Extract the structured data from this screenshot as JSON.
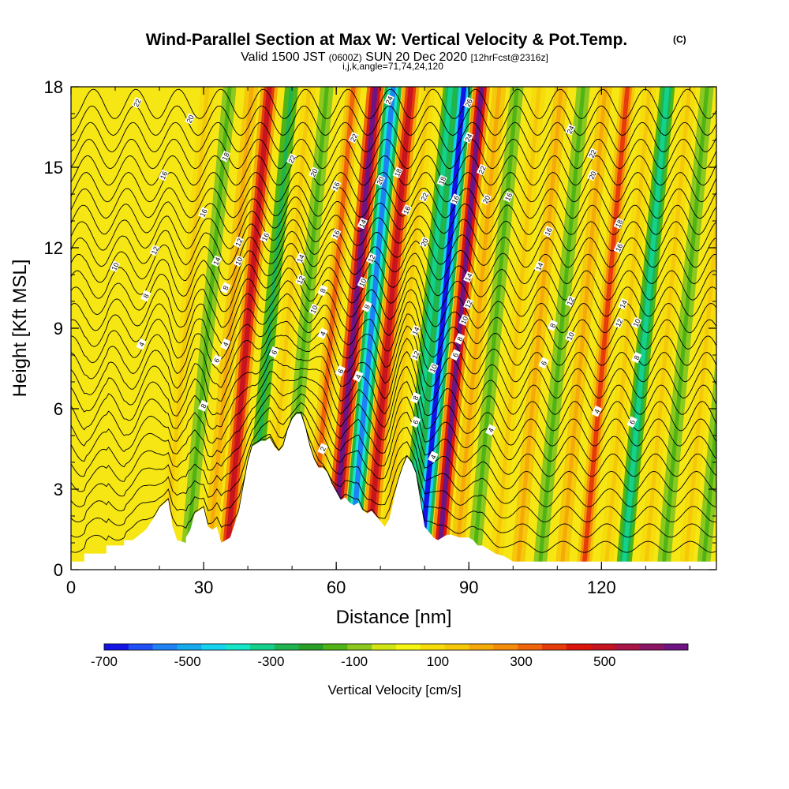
{
  "chart_data": {
    "type": "heatmap",
    "title": "Wind-Parallel Section at Max W: Vertical Velocity & Pot.Temp.",
    "title_mark": "(C)",
    "subtitle": {
      "prefix": "Valid 1500 JST",
      "utc": "(0600Z)",
      "date": "SUN 20 Dec 2020",
      "forecast": "[12hrFcst@2316z]"
    },
    "params_line": "i,j,k,angle=71,74,24,120",
    "xlabel": "Distance [nm]",
    "ylabel": "Height [Kft MSL]",
    "xlim": [
      0,
      146
    ],
    "ylim": [
      0,
      18
    ],
    "x_ticks": [
      "0",
      "30",
      "60",
      "90",
      "120"
    ],
    "y_ticks": [
      "0",
      "3",
      "6",
      "9",
      "12",
      "15",
      "18"
    ],
    "colorbar": {
      "label": "Vertical Velocity [cm/s]",
      "range": [
        -700,
        700
      ],
      "tick_labels": [
        "-700",
        "-500",
        "-300",
        "-100",
        "100",
        "300",
        "500"
      ],
      "colors": [
        "#1414e6",
        "#1e50f5",
        "#1e82f5",
        "#14aaf0",
        "#14d2f0",
        "#14e6c8",
        "#14d28c",
        "#1eb450",
        "#28a028",
        "#50b414",
        "#8cc81e",
        "#d2e614",
        "#f5f514",
        "#f5dc0a",
        "#f5c80a",
        "#f5aa0a",
        "#f58c0a",
        "#f0640a",
        "#e63c0a",
        "#dc140a",
        "#c8141e",
        "#aa1446",
        "#8c1464",
        "#6e1482"
      ]
    },
    "band_centers_nm": [
      21,
      26,
      31,
      35,
      40,
      44,
      48,
      54,
      59,
      63,
      67,
      71,
      76,
      79,
      83,
      87,
      91,
      96,
      101,
      106,
      111,
      116,
      121,
      125,
      130,
      134,
      139,
      143
    ],
    "band_values_cms": [
      150,
      -150,
      200,
      500,
      -250,
      150,
      -150,
      300,
      700,
      -550,
      500,
      150,
      -350,
      -650,
      650,
      200,
      -150,
      150,
      200,
      -150,
      200,
      350,
      150,
      -350,
      150,
      -150,
      150,
      -150
    ],
    "contour_labels": [
      {
        "text": "22",
        "x": 15,
        "y": 17.4
      },
      {
        "text": "20",
        "x": 27,
        "y": 16.8
      },
      {
        "text": "18",
        "x": 35,
        "y": 15.4
      },
      {
        "text": "16",
        "x": 21,
        "y": 14.7
      },
      {
        "text": "16",
        "x": 30,
        "y": 13.3
      },
      {
        "text": "12",
        "x": 19,
        "y": 11.9
      },
      {
        "text": "12",
        "x": 38,
        "y": 12.2
      },
      {
        "text": "16",
        "x": 44,
        "y": 12.4
      },
      {
        "text": "10",
        "x": 10,
        "y": 11.3
      },
      {
        "text": "14",
        "x": 33,
        "y": 11.5
      },
      {
        "text": "10",
        "x": 38,
        "y": 11.5
      },
      {
        "text": "8",
        "x": 17,
        "y": 10.2
      },
      {
        "text": "8",
        "x": 35,
        "y": 10.5
      },
      {
        "text": "4",
        "x": 16,
        "y": 8.4
      },
      {
        "text": "4",
        "x": 35,
        "y": 8.4
      },
      {
        "text": "6",
        "x": 33,
        "y": 7.8
      },
      {
        "text": "6",
        "x": 46,
        "y": 8.1
      },
      {
        "text": "8",
        "x": 30,
        "y": 6.1
      },
      {
        "text": "22",
        "x": 50,
        "y": 15.3
      },
      {
        "text": "20",
        "x": 55,
        "y": 14.8
      },
      {
        "text": "14",
        "x": 52,
        "y": 11.6
      },
      {
        "text": "12",
        "x": 52,
        "y": 10.8
      },
      {
        "text": "10",
        "x": 55,
        "y": 9.7
      },
      {
        "text": "8",
        "x": 57,
        "y": 10.4
      },
      {
        "text": "4",
        "x": 57,
        "y": 8.8
      },
      {
        "text": "2",
        "x": 57,
        "y": 4.5
      },
      {
        "text": "24",
        "x": 72,
        "y": 17.5
      },
      {
        "text": "22",
        "x": 64,
        "y": 16.1
      },
      {
        "text": "20",
        "x": 70,
        "y": 14.5
      },
      {
        "text": "18",
        "x": 74,
        "y": 14.8
      },
      {
        "text": "16",
        "x": 60,
        "y": 14.3
      },
      {
        "text": "16",
        "x": 60,
        "y": 12.5
      },
      {
        "text": "14",
        "x": 66,
        "y": 12.9
      },
      {
        "text": "12",
        "x": 68,
        "y": 11.6
      },
      {
        "text": "10",
        "x": 66,
        "y": 10.7
      },
      {
        "text": "8",
        "x": 67,
        "y": 9.8
      },
      {
        "text": "6",
        "x": 61,
        "y": 7.4
      },
      {
        "text": "4",
        "x": 65,
        "y": 7.2
      },
      {
        "text": "16",
        "x": 76,
        "y": 13.4
      },
      {
        "text": "22",
        "x": 80,
        "y": 13.9
      },
      {
        "text": "20",
        "x": 80,
        "y": 12.2
      },
      {
        "text": "18",
        "x": 84,
        "y": 14.5
      },
      {
        "text": "16",
        "x": 87,
        "y": 13.8
      },
      {
        "text": "14",
        "x": 78,
        "y": 8.9
      },
      {
        "text": "12",
        "x": 78,
        "y": 8.0
      },
      {
        "text": "10",
        "x": 82,
        "y": 7.5
      },
      {
        "text": "8",
        "x": 78,
        "y": 6.4
      },
      {
        "text": "6",
        "x": 78,
        "y": 5.5
      },
      {
        "text": "4",
        "x": 82,
        "y": 4.2
      },
      {
        "text": "26",
        "x": 90,
        "y": 17.4
      },
      {
        "text": "24",
        "x": 90,
        "y": 16.1
      },
      {
        "text": "22",
        "x": 93,
        "y": 14.9
      },
      {
        "text": "20",
        "x": 94,
        "y": 13.8
      },
      {
        "text": "16",
        "x": 99,
        "y": 13.9
      },
      {
        "text": "14",
        "x": 90,
        "y": 10.9
      },
      {
        "text": "12",
        "x": 90,
        "y": 9.9
      },
      {
        "text": "10",
        "x": 89,
        "y": 9.3
      },
      {
        "text": "8",
        "x": 88,
        "y": 8.6
      },
      {
        "text": "6",
        "x": 87,
        "y": 8.0
      },
      {
        "text": "4",
        "x": 95,
        "y": 5.2
      },
      {
        "text": "16",
        "x": 108,
        "y": 12.6
      },
      {
        "text": "14",
        "x": 106,
        "y": 11.3
      },
      {
        "text": "12",
        "x": 113,
        "y": 10.0
      },
      {
        "text": "8",
        "x": 109,
        "y": 9.1
      },
      {
        "text": "10",
        "x": 113,
        "y": 8.7
      },
      {
        "text": "6",
        "x": 107,
        "y": 7.7
      },
      {
        "text": "4",
        "x": 119,
        "y": 5.9
      },
      {
        "text": "6",
        "x": 127,
        "y": 5.5
      },
      {
        "text": "24",
        "x": 113,
        "y": 16.4
      },
      {
        "text": "22",
        "x": 118,
        "y": 15.5
      },
      {
        "text": "20",
        "x": 118,
        "y": 14.7
      },
      {
        "text": "18",
        "x": 124,
        "y": 12.9
      },
      {
        "text": "16",
        "x": 124,
        "y": 12.0
      },
      {
        "text": "14",
        "x": 125,
        "y": 9.9
      },
      {
        "text": "12",
        "x": 124,
        "y": 9.2
      },
      {
        "text": "10",
        "x": 128,
        "y": 9.2
      },
      {
        "text": "8",
        "x": 128,
        "y": 7.9
      }
    ]
  }
}
